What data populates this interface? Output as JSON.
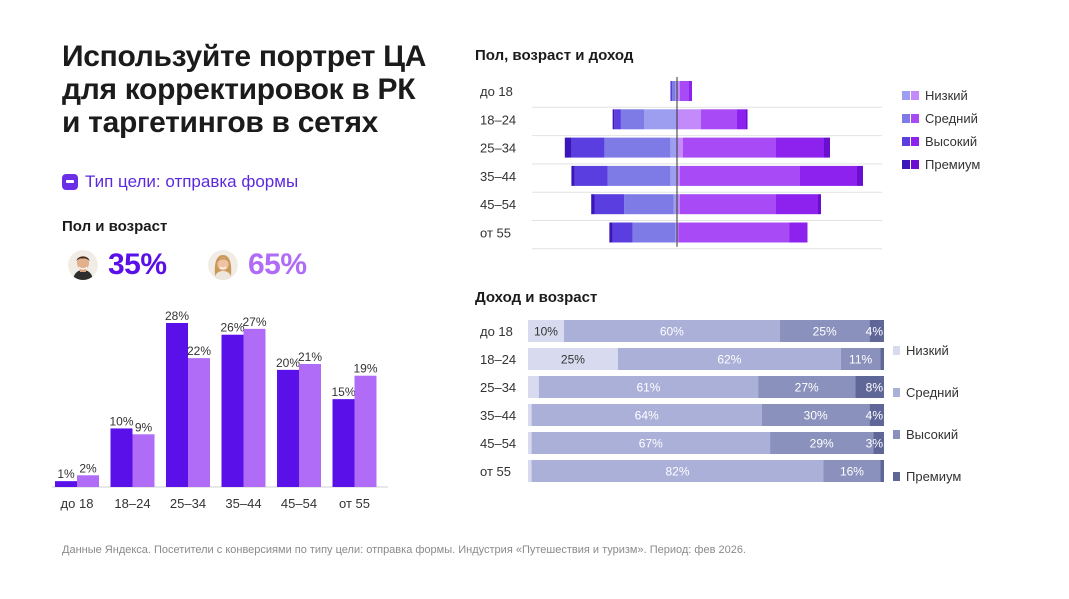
{
  "headline": {
    "line1": "Используйте портрет ЦА",
    "line2": "для корректировок в РК",
    "line3": "и таргетингов в сетях"
  },
  "goal": {
    "icon": "form-icon",
    "label": "Тип цели: отправка формы"
  },
  "age_section_title": "Пол и возраст",
  "gender": {
    "male": {
      "icon": "male-avatar-icon",
      "percent": "35%"
    },
    "female": {
      "icon": "female-avatar-icon",
      "percent": "65%"
    }
  },
  "colors": {
    "male": "#5a10e8",
    "female": "#b06cf7",
    "income_low": "#aab0d8",
    "income_mid_light": "#d8dbef",
    "income_high": "#8a91bd",
    "income_premium": "#5f6799"
  },
  "footnote": "Данные Яндекса. Посетители с конверсиями по типу цели: отправка формы. Индустрия «Путешествия и туризм». Период: фев 2026.",
  "chart_data": [
    {
      "id": "gender_age",
      "type": "bar",
      "title": "Пол и возраст",
      "categories": [
        "до 18",
        "18–24",
        "25–34",
        "35–44",
        "45–54",
        "от 55"
      ],
      "series": [
        {
          "name": "Мужчины",
          "values": [
            1,
            10,
            28,
            26,
            20,
            15
          ],
          "labels": [
            "1%",
            "10%",
            "28%",
            "26%",
            "20%",
            "15%"
          ]
        },
        {
          "name": "Женщины",
          "values": [
            2,
            9,
            22,
            27,
            21,
            19
          ],
          "labels": [
            "2%",
            "9%",
            "22%",
            "27%",
            "21%",
            "19%"
          ]
        }
      ],
      "ylim": [
        0,
        28
      ]
    },
    {
      "id": "gender_age_income",
      "type": "bar",
      "orientation": "horizontal-diverging",
      "title": "Пол, возраст и доход",
      "categories": [
        "до 18",
        "18–24",
        "25–34",
        "35–44",
        "45–54",
        "от 55"
      ],
      "legend": [
        "Низкий",
        "Средний",
        "Высокий",
        "Премиум"
      ],
      "legend_colors": [
        [
          "#9e9ef0",
          "#c38bf9"
        ],
        [
          "#7f7be6",
          "#a84bf6"
        ],
        [
          "#5a3ee0",
          "#8d22ee"
        ],
        [
          "#3b16b8",
          "#6a0fcf"
        ]
      ],
      "units": "relative width, 0–100 per side",
      "series": [
        {
          "name": "Мужчины · Низкий",
          "side": "left",
          "values": [
            0.5,
            10,
            2,
            2,
            1,
            0.5
          ]
        },
        {
          "name": "Мужчины · Средний",
          "side": "left",
          "values": [
            1,
            7,
            20,
            19,
            15,
            13
          ]
        },
        {
          "name": "Мужчины · Высокий",
          "side": "left",
          "values": [
            0.5,
            2,
            10,
            10,
            9,
            6
          ]
        },
        {
          "name": "Мужчины · Премиум",
          "side": "left",
          "values": [
            0,
            0.5,
            2,
            1,
            1,
            1
          ]
        },
        {
          "name": "Женщины · Низкий",
          "side": "right",
          "values": [
            1,
            8,
            2,
            1,
            1,
            0.5
          ]
        },
        {
          "name": "Женщины · Средний",
          "side": "right",
          "values": [
            3,
            12,
            31,
            40,
            32,
            37
          ]
        },
        {
          "name": "Женщины · Высокий",
          "side": "right",
          "values": [
            1,
            3,
            16,
            19,
            14,
            6
          ]
        },
        {
          "name": "Женщины · Премиум",
          "side": "right",
          "values": [
            0,
            0.5,
            2,
            2,
            1,
            0
          ]
        }
      ]
    },
    {
      "id": "income_age",
      "type": "bar",
      "orientation": "horizontal-stacked-100",
      "title": "Доход и возраст",
      "categories": [
        "до 18",
        "18–24",
        "25–34",
        "35–44",
        "45–54",
        "от 55"
      ],
      "legend": [
        "Низкий",
        "Средний",
        "Высокий",
        "Премиум"
      ],
      "series": [
        {
          "name": "Низкий",
          "values": [
            10,
            25,
            3,
            1,
            1,
            1
          ],
          "labels": [
            "10%",
            "25%",
            "",
            "",
            "",
            ""
          ]
        },
        {
          "name": "Средний",
          "values": [
            60,
            62,
            61,
            64,
            67,
            82
          ],
          "labels": [
            "60%",
            "62%",
            "61%",
            "64%",
            "67%",
            "82%"
          ]
        },
        {
          "name": "Высокий",
          "values": [
            25,
            11,
            27,
            30,
            29,
            16
          ],
          "labels": [
            "25%",
            "11%",
            "27%",
            "30%",
            "29%",
            "16%"
          ]
        },
        {
          "name": "Премиум",
          "values": [
            4,
            1,
            8,
            4,
            3,
            1
          ],
          "labels": [
            "4%",
            "",
            "8%",
            "4%",
            "3%",
            ""
          ]
        }
      ]
    }
  ]
}
